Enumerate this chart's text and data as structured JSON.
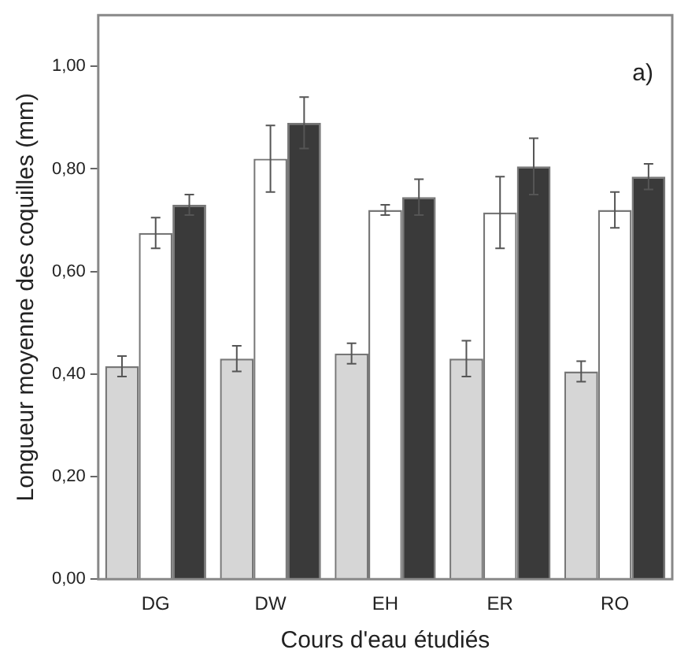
{
  "chart_data": {
    "type": "bar",
    "xlabel": "Cours d'eau étudiés",
    "ylabel": "Longueur moyenne des coquilles (mm)",
    "categories": [
      "DG",
      "DW",
      "EH",
      "ER",
      "RO"
    ],
    "series": [
      {
        "color": "#d6d6d6",
        "values": [
          0.415,
          0.43,
          0.44,
          0.43,
          0.405
        ],
        "errors": [
          0.02,
          0.025,
          0.02,
          0.035,
          0.02
        ]
      },
      {
        "color": "#ffffff",
        "values": [
          0.675,
          0.82,
          0.72,
          0.715,
          0.72
        ],
        "errors": [
          0.03,
          0.065,
          0.01,
          0.07,
          0.035
        ]
      },
      {
        "color": "#3a3a3a",
        "values": [
          0.73,
          0.89,
          0.745,
          0.805,
          0.785
        ],
        "errors": [
          0.02,
          0.05,
          0.035,
          0.055,
          0.025
        ]
      }
    ],
    "ylim": [
      0,
      1.1
    ],
    "yticks": [
      {
        "value": 0,
        "label": "0,00"
      },
      {
        "value": 0.2,
        "label": "0,20"
      },
      {
        "value": 0.4,
        "label": "0,40"
      },
      {
        "value": 0.6,
        "label": "0,60"
      },
      {
        "value": 0.8,
        "label": "0,80"
      },
      {
        "value": 1,
        "label": "1,00"
      }
    ],
    "annotations": [
      "a)"
    ],
    "grid": false,
    "legend": false
  }
}
